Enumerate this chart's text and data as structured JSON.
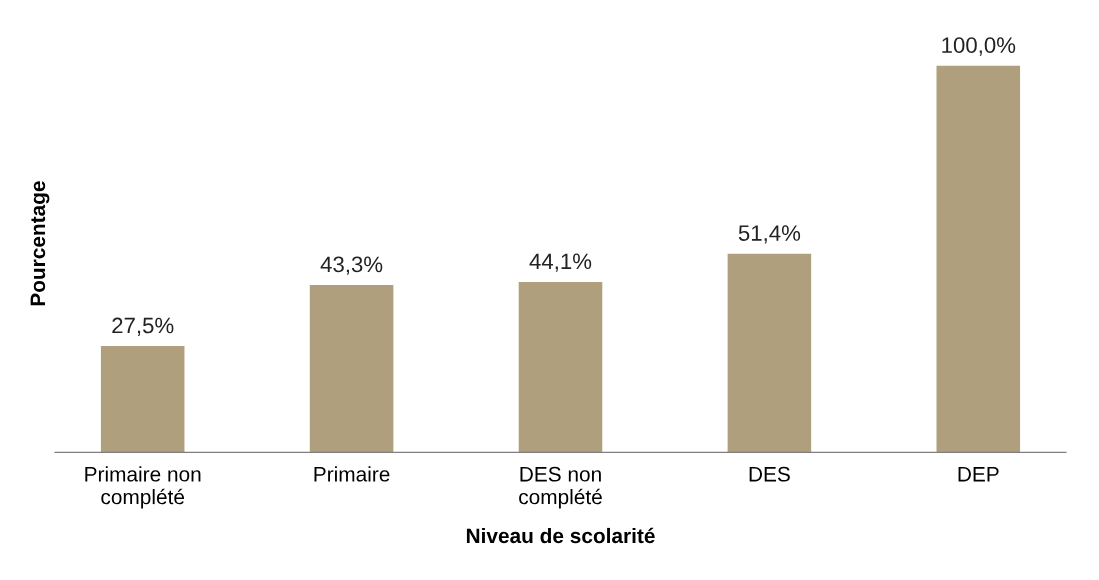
{
  "chart_data": {
    "type": "bar",
    "xlabel": "Niveau de scolarité",
    "ylabel": "Pourcentage",
    "categories": [
      "Primaire non\ncomplété",
      "Primaire",
      "DES non\ncomplété",
      "DES",
      "DEP"
    ],
    "values": [
      27.5,
      43.3,
      44.1,
      51.4,
      100.0
    ],
    "value_labels": [
      "27,5%",
      "43,3%",
      "44,1%",
      "51,4%",
      "100,0%"
    ],
    "color": "#b09f7d",
    "grid": false,
    "legend": false
  }
}
